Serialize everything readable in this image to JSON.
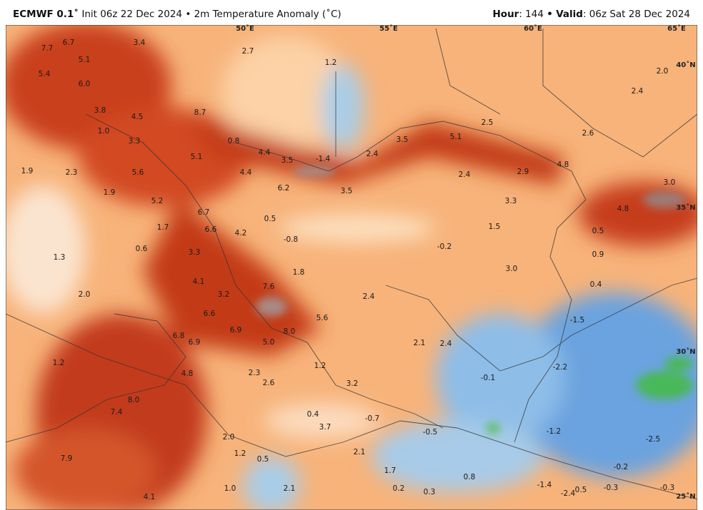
{
  "header": {
    "model": "ECMWF 0.1˚",
    "init": "Init 06z 22 Dec 2024",
    "variable": "2m Temperature Anomaly (˚C)",
    "separator": "•",
    "hour_label": "Hour",
    "hour": ": 144",
    "valid_label": "Valid",
    "valid": ": 06z Sat 28 Dec 2024"
  },
  "map": {
    "longitudes": [
      "50˚E",
      "55˚E",
      "60˚E",
      "65˚E"
    ],
    "latitudes": [
      "40˚N",
      "35˚N",
      "30˚N",
      "25˚N"
    ],
    "labels": [
      "7.7",
      "6.7",
      "5.1",
      "3.4",
      "2.7",
      "1.2",
      "2.0",
      "5.4",
      "6.0",
      "2.4",
      "3.8",
      "4.5",
      "8.7",
      "1.0",
      "3.3",
      "2.5",
      "2.6",
      "5.1",
      "3.5",
      "0.8",
      "4.4",
      "3.5",
      "-1.4",
      "2.4",
      "1.9",
      "2.3",
      "5.6",
      "5.1",
      "4.4",
      "2.4",
      "2.9",
      "4.8",
      "3.0",
      "1.9",
      "6.2",
      "3.5",
      "3.3",
      "5.2",
      "6.7",
      "4.8",
      "0.5",
      "1.7",
      "6.6",
      "4.2",
      "-0.8",
      "1.5",
      "0.5",
      "0.6",
      "3.3",
      "-0.2",
      "1.3",
      "0.9",
      "3.0",
      "1.8",
      "4.1",
      "7.6",
      "0.4",
      "2.0",
      "3.2",
      "2.4",
      "6.6",
      "5.6",
      "-1.5",
      "6.9",
      "8.0",
      "6.8",
      "6.9",
      "5.0",
      "2.1",
      "2.4",
      "1.2",
      "1.2",
      "4.8",
      "2.3",
      "-0.1",
      "-2.2",
      "2.6",
      "3.2",
      "8.0",
      "7.4",
      "0.4",
      "-0.7",
      "3.7",
      "2.0",
      "-0.5",
      "-1.2",
      "-2.5",
      "1.2",
      "0.5",
      "2.1",
      "7.9",
      "1.7",
      "-0.2",
      "0.8",
      "1.0",
      "2.1",
      "0.2",
      "0.3",
      "-1.4",
      "-2.4",
      "0.5",
      "-0.3",
      "-0.3",
      "4.1"
    ]
  }
}
